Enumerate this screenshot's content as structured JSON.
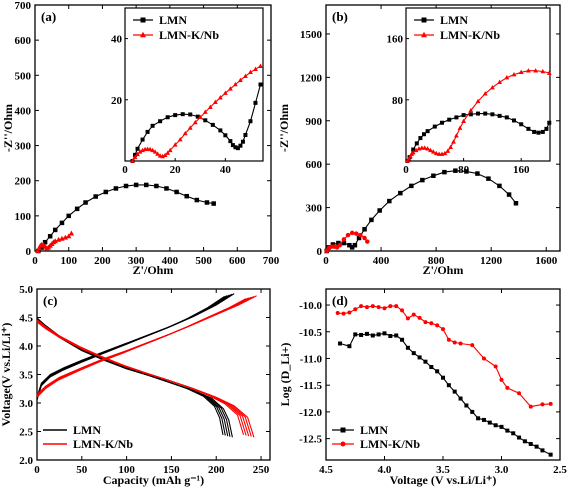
{
  "colors": {
    "lmn": "#000000",
    "lmnk": "#ff0000"
  },
  "panels": [
    {
      "id": "a",
      "panel_label": "(a)",
      "chart_data": {
        "type": "scatter",
        "xlabel": "Z'/Ohm",
        "ylabel": "-Z''/Ohm",
        "xlim": [
          0,
          700
        ],
        "ylim": [
          0,
          700
        ],
        "xticks": [
          0,
          100,
          200,
          300,
          400,
          500,
          600,
          700
        ],
        "yticks": [
          0,
          100,
          200,
          300,
          400,
          500,
          600,
          700
        ],
        "legend": "inset top-left",
        "series": [
          {
            "name": "LMN",
            "marker": "square",
            "color": "#000000",
            "x": [
              10,
              20,
              30,
              45,
              60,
              80,
              100,
              125,
              150,
              180,
              210,
              240,
              270,
              300,
              330,
              360,
              390,
              420,
              450,
              480,
              510,
              530
            ],
            "y": [
              0,
              10,
              25,
              42,
              60,
              80,
              100,
              120,
              138,
              155,
              168,
              178,
              185,
              188,
              188,
              185,
              178,
              168,
              156,
              145,
              138,
              135
            ]
          },
          {
            "name": "LMN-K/Nb",
            "marker": "triangle",
            "color": "#ff0000",
            "x": [
              8,
              12,
              16,
              20,
              25,
              30,
              35,
              40,
              45,
              50,
              55,
              60,
              70,
              80,
              90,
              100,
              108
            ],
            "y": [
              0,
              8,
              15,
              18,
              18,
              12,
              8,
              10,
              15,
              20,
              25,
              28,
              32,
              35,
              38,
              42,
              50
            ]
          }
        ]
      },
      "inset": {
        "xlim": [
          0,
          55
        ],
        "ylim": [
          0,
          50
        ],
        "xticks": [
          0,
          20,
          40
        ],
        "yticks": [
          20,
          40
        ],
        "series": [
          {
            "name": "LMN",
            "x": [
              3,
              4,
              5,
              7,
              9,
              11,
              14,
              17,
              20,
              23,
              26,
              29,
              32,
              35,
              38,
              40,
              42,
              43,
              44,
              45,
              46,
              47,
              48,
              50,
              52,
              54
            ],
            "y": [
              0,
              2,
              4,
              7,
              9.5,
              11.5,
              13,
              14.3,
              15,
              15.3,
              15.2,
              14.5,
              13.3,
              11.8,
              10,
              8.4,
              6.5,
              5.2,
              4.5,
              4.2,
              5,
              6.3,
              8.5,
              13,
              19,
              25
            ]
          },
          {
            "name": "LMN-K/Nb",
            "x": [
              3,
              4,
              5,
              6,
              7,
              8,
              9,
              10,
              11,
              12,
              13,
              14,
              15,
              16,
              17,
              18,
              20,
              22,
              24,
              26,
              28,
              30,
              32,
              34,
              36,
              38,
              40,
              42,
              44,
              46,
              48,
              50,
              52,
              54
            ],
            "y": [
              0,
              1.2,
              2.2,
              3,
              3.5,
              3.8,
              3.9,
              3.8,
              3.5,
              3,
              2.3,
              1.7,
              1.5,
              1.9,
              2.6,
              3.5,
              5.3,
              7,
              9,
              10.8,
              12.6,
              14.3,
              16,
              17.6,
              19.2,
              20.7,
              22.2,
              23.6,
              25,
              26.4,
              27.7,
              29,
              30,
              31
            ]
          }
        ]
      }
    },
    {
      "id": "b",
      "panel_label": "(b)",
      "chart_data": {
        "type": "scatter",
        "xlabel": "Z'/Ohm",
        "ylabel": "-Z''/Ohm",
        "xlim": [
          0,
          1700
        ],
        "ylim": [
          0,
          1700
        ],
        "xticks": [
          0,
          400,
          800,
          1200,
          1600
        ],
        "yticks": [
          0,
          300,
          600,
          900,
          1200,
          1500
        ],
        "legend": "inset top-left",
        "series": [
          {
            "name": "LMN",
            "marker": "square",
            "color": "#000000",
            "x": [
              5,
              20,
              50,
              90,
              130,
              170,
              190,
              210,
              240,
              280,
              330,
              390,
              460,
              540,
              620,
              700,
              780,
              860,
              940,
              1020,
              1100,
              1180,
              1260,
              1330,
              1380
            ],
            "y": [
              0,
              25,
              45,
              55,
              55,
              40,
              25,
              40,
              90,
              150,
              215,
              280,
              345,
              400,
              450,
              490,
              520,
              545,
              555,
              550,
              535,
              500,
              450,
              390,
              330
            ]
          },
          {
            "name": "LMN-K/Nb",
            "marker": "circle",
            "color": "#ff0000",
            "x": [
              5,
              20,
              40,
              60,
              80,
              100,
              130,
              160,
              190,
              220,
              250,
              280,
              300
            ],
            "y": [
              0,
              20,
              30,
              30,
              25,
              40,
              80,
              110,
              125,
              120,
              110,
              90,
              65
            ]
          }
        ]
      },
      "inset": {
        "xlim": [
          0,
          200
        ],
        "ylim": [
          0,
          200
        ],
        "xticks": [
          0,
          80,
          160
        ],
        "yticks": [
          80,
          160
        ],
        "series": [
          {
            "name": "LMN",
            "x": [
              2,
              5,
              10,
              15,
              20,
              25,
              30,
              40,
              50,
              60,
              70,
              80,
              90,
              100,
              110,
              120,
              130,
              140,
              150,
              160,
              170,
              178,
              184,
              190,
              195,
              199
            ],
            "y": [
              0,
              5,
              15,
              23,
              30,
              35,
              39,
              45,
              50,
              54,
              57,
              60,
              61,
              62,
              62,
              61,
              59,
              57,
              53,
              48,
              42,
              38,
              37,
              38,
              42,
              50
            ]
          },
          {
            "name": "LMN-K/Nb",
            "x": [
              2,
              4,
              6,
              8,
              10,
              14,
              18,
              22,
              26,
              30,
              34,
              38,
              42,
              46,
              50,
              54,
              58,
              62,
              66,
              70,
              75,
              80,
              90,
              100,
              110,
              120,
              130,
              140,
              150,
              160,
              170,
              180,
              190,
              199
            ],
            "y": [
              0,
              3,
              6,
              9,
              11,
              14,
              16,
              17,
              17,
              16,
              14,
              12,
              10,
              9,
              9,
              10,
              13,
              18,
              25,
              33,
              43,
              52,
              66,
              78,
              88,
              96,
              103,
              109,
              113,
              116,
              118,
              118,
              117,
              115
            ]
          }
        ]
      }
    },
    {
      "id": "c",
      "panel_label": "(c)",
      "chart_data": {
        "type": "line",
        "xlabel": "Capacity (mAh g⁻¹)",
        "ylabel": "Voltage(V vs.Li/Li⁺)",
        "xlim": [
          0,
          260
        ],
        "ylim": [
          2.0,
          5.0
        ],
        "xticks": [
          0,
          50,
          100,
          150,
          200,
          250
        ],
        "yticks": [
          2.0,
          2.5,
          3.0,
          3.5,
          4.0,
          4.5,
          5.0
        ],
        "legend": "bottom-left",
        "series": [
          {
            "name": "LMN",
            "color": "#000000",
            "charge": {
              "x": [
                0,
                5,
                15,
                30,
                50,
                75,
                100,
                125,
                150,
                175,
                200,
                220
              ],
              "y": [
                3.1,
                3.35,
                3.5,
                3.62,
                3.75,
                3.9,
                4.05,
                4.2,
                4.35,
                4.52,
                4.72,
                4.92
              ]
            },
            "discharge": {
              "x": [
                0,
                10,
                25,
                50,
                75,
                100,
                125,
                150,
                175,
                195,
                208,
                214,
                218
              ],
              "y": [
                4.45,
                4.32,
                4.15,
                3.92,
                3.75,
                3.6,
                3.48,
                3.35,
                3.22,
                3.08,
                2.9,
                2.7,
                2.4
              ]
            }
          },
          {
            "name": "LMN-K/Nb",
            "color": "#ff0000",
            "charge": {
              "x": [
                0,
                10,
                25,
                50,
                75,
                100,
                125,
                150,
                175,
                200,
                225,
                245
              ],
              "y": [
                3.15,
                3.3,
                3.45,
                3.62,
                3.78,
                3.92,
                4.07,
                4.22,
                4.38,
                4.55,
                4.72,
                4.88
              ]
            },
            "discharge": {
              "x": [
                0,
                10,
                25,
                50,
                75,
                100,
                125,
                150,
                175,
                200,
                220,
                235,
                242
              ],
              "y": [
                4.42,
                4.3,
                4.15,
                3.95,
                3.78,
                3.63,
                3.5,
                3.38,
                3.25,
                3.1,
                2.95,
                2.75,
                2.4
              ]
            }
          }
        ]
      }
    },
    {
      "id": "d",
      "panel_label": "(d)",
      "chart_data": {
        "type": "line",
        "xlabel": "Voltage (V vs.Li/Li⁺)",
        "ylabel": "Log (D_Li+)",
        "xlim": [
          4.5,
          2.5
        ],
        "ylim": [
          -12.9,
          -9.7
        ],
        "xticks": [
          4.5,
          4.0,
          3.5,
          3.0,
          2.5
        ],
        "yticks": [
          -10.0,
          -10.5,
          -11.0,
          -11.5,
          -12.0,
          -12.5
        ],
        "legend": "bottom-left",
        "series": [
          {
            "name": "LMN",
            "marker": "square",
            "color": "#000000",
            "x": [
              4.38,
              4.3,
              4.25,
              4.2,
              4.15,
              4.1,
              4.05,
              4.0,
              3.95,
              3.9,
              3.85,
              3.8,
              3.75,
              3.7,
              3.65,
              3.6,
              3.55,
              3.5,
              3.45,
              3.4,
              3.35,
              3.3,
              3.25,
              3.2,
              3.15,
              3.1,
              3.05,
              3.0,
              2.95,
              2.9,
              2.85,
              2.8,
              2.75,
              2.7,
              2.65,
              2.58
            ],
            "y": [
              -10.72,
              -10.77,
              -10.55,
              -10.56,
              -10.54,
              -10.57,
              -10.55,
              -10.53,
              -10.58,
              -10.57,
              -10.65,
              -10.8,
              -10.9,
              -10.98,
              -11.06,
              -11.16,
              -11.24,
              -11.36,
              -11.5,
              -11.62,
              -11.75,
              -11.88,
              -12.0,
              -12.12,
              -12.15,
              -12.2,
              -12.25,
              -12.28,
              -12.35,
              -12.4,
              -12.48,
              -12.55,
              -12.6,
              -12.65,
              -12.72,
              -12.8
            ]
          },
          {
            "name": "LMN-K/Nb",
            "marker": "circle",
            "color": "#ff0000",
            "x": [
              4.4,
              4.35,
              4.3,
              4.25,
              4.2,
              4.15,
              4.1,
              4.05,
              4.0,
              3.95,
              3.9,
              3.85,
              3.8,
              3.75,
              3.7,
              3.65,
              3.6,
              3.55,
              3.5,
              3.45,
              3.4,
              3.35,
              3.25,
              3.15,
              3.05,
              3.0,
              2.95,
              2.85,
              2.75,
              2.65,
              2.58
            ],
            "y": [
              -10.15,
              -10.16,
              -10.14,
              -10.08,
              -10.02,
              -10.04,
              -10.02,
              -10.04,
              -10.06,
              -10.02,
              -10.02,
              -10.1,
              -10.25,
              -10.18,
              -10.24,
              -10.32,
              -10.34,
              -10.38,
              -10.45,
              -10.65,
              -10.7,
              -10.72,
              -10.75,
              -11.0,
              -11.15,
              -11.4,
              -11.55,
              -11.65,
              -11.9,
              -11.86,
              -11.85
            ]
          }
        ]
      }
    }
  ]
}
